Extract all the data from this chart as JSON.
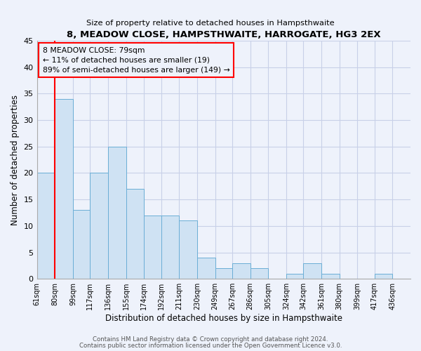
{
  "title": "8, MEADOW CLOSE, HAMPSTHWAITE, HARROGATE, HG3 2EX",
  "subtitle": "Size of property relative to detached houses in Hampsthwaite",
  "xlabel": "Distribution of detached houses by size in Hampsthwaite",
  "ylabel": "Number of detached properties",
  "bin_labels": [
    "61sqm",
    "80sqm",
    "99sqm",
    "117sqm",
    "136sqm",
    "155sqm",
    "174sqm",
    "192sqm",
    "211sqm",
    "230sqm",
    "249sqm",
    "267sqm",
    "286sqm",
    "305sqm",
    "324sqm",
    "342sqm",
    "361sqm",
    "380sqm",
    "399sqm",
    "417sqm",
    "436sqm"
  ],
  "bin_edges": [
    61,
    80,
    99,
    117,
    136,
    155,
    174,
    192,
    211,
    230,
    249,
    267,
    286,
    305,
    324,
    342,
    361,
    380,
    399,
    417,
    436
  ],
  "counts": [
    20,
    34,
    13,
    20,
    25,
    17,
    12,
    12,
    11,
    4,
    2,
    3,
    2,
    0,
    1,
    3,
    1,
    0,
    0,
    1,
    0
  ],
  "bar_color": "#cfe2f3",
  "bar_edge_color": "#6baed6",
  "annotation_box_text": "8 MEADOW CLOSE: 79sqm\n← 11% of detached houses are smaller (19)\n89% of semi-detached houses are larger (149) →",
  "ylim": [
    0,
    45
  ],
  "yticks": [
    0,
    5,
    10,
    15,
    20,
    25,
    30,
    35,
    40,
    45
  ],
  "red_line_x": 80,
  "footer_line1": "Contains HM Land Registry data © Crown copyright and database right 2024.",
  "footer_line2": "Contains public sector information licensed under the Open Government Licence v3.0.",
  "bg_color": "#eef2fb",
  "grid_color": "#c8d0e8"
}
